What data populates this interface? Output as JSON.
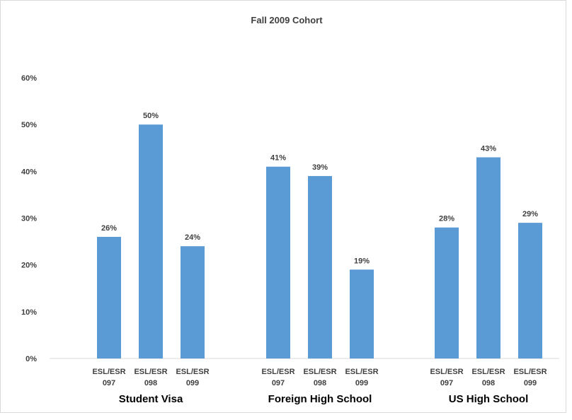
{
  "chart_data": {
    "type": "bar",
    "title": "Fall 2009 Cohort",
    "xlabel": "",
    "ylabel": "",
    "ylim": [
      0,
      60
    ],
    "y_ticks": [
      "0%",
      "10%",
      "20%",
      "30%",
      "40%",
      "50%",
      "60%"
    ],
    "grid": false,
    "legend": "none",
    "bar_color": "#5b9bd5",
    "groups": [
      {
        "name": "Student Visa",
        "categories": [
          [
            "ESL/ESR",
            "097"
          ],
          [
            "ESL/ESR",
            "098"
          ],
          [
            "ESL/ESR",
            "099"
          ]
        ],
        "values": [
          26,
          50,
          24
        ],
        "labels": [
          "26%",
          "50%",
          "24%"
        ]
      },
      {
        "name": "Foreign High School",
        "categories": [
          [
            "ESL/ESR",
            "097"
          ],
          [
            "ESL/ESR",
            "098"
          ],
          [
            "ESL/ESR",
            "099"
          ]
        ],
        "values": [
          41,
          39,
          19
        ],
        "labels": [
          "41%",
          "39%",
          "19%"
        ]
      },
      {
        "name": "US High School",
        "categories": [
          [
            "ESL/ESR",
            "097"
          ],
          [
            "ESL/ESR",
            "098"
          ],
          [
            "ESL/ESR",
            "099"
          ]
        ],
        "values": [
          28,
          43,
          29
        ],
        "labels": [
          "28%",
          "43%",
          "29%"
        ]
      }
    ]
  }
}
